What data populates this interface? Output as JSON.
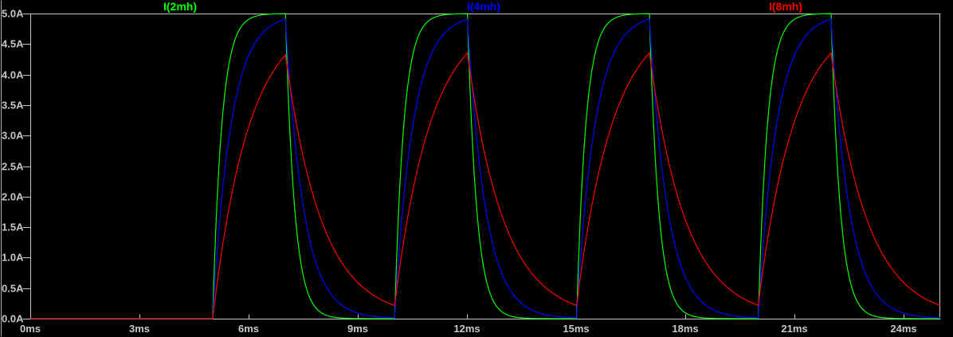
{
  "window": {
    "background": "#000000",
    "axis_color": "#c8c8c8",
    "edge_line_color": "#b0b0b0"
  },
  "chart_data": {
    "type": "line",
    "title": "",
    "grid": false,
    "legend_position": "top",
    "x_axis": {
      "unit": "ms",
      "min": 0,
      "max": 25,
      "tick_step": 3,
      "tick_labels": [
        "0ms",
        "3ms",
        "6ms",
        "9ms",
        "12ms",
        "15ms",
        "18ms",
        "21ms",
        "24ms"
      ]
    },
    "y_axis": {
      "unit": "A",
      "min": 0,
      "max": 5,
      "tick_step": 0.5,
      "tick_labels": [
        "5.0A",
        "4.5A",
        "4.0A",
        "3.5A",
        "3.0A",
        "2.5A",
        "2.0A",
        "1.5A",
        "1.0A",
        "0.5A",
        "0.0A"
      ]
    },
    "excitation": {
      "type": "pulse",
      "rise_times_ms": [
        5,
        10,
        15,
        20
      ],
      "on_width_ms": 2,
      "period_ms": 5,
      "target_on_A": 5,
      "target_off_A": 0
    },
    "series": [
      {
        "name": "I(2mh)",
        "color": "#00ff00",
        "tau_ms": 0.25,
        "knots": [
          {
            "t_ms": 0,
            "i_A": 0
          },
          {
            "t_ms": 5,
            "i_A": 0
          },
          {
            "t_ms": 7,
            "i_A": 5.0
          },
          {
            "t_ms": 10,
            "i_A": 0.0
          },
          {
            "t_ms": 12,
            "i_A": 5.0
          },
          {
            "t_ms": 15,
            "i_A": 0.0
          },
          {
            "t_ms": 17,
            "i_A": 5.0
          },
          {
            "t_ms": 20,
            "i_A": 0.0
          },
          {
            "t_ms": 22,
            "i_A": 5.0
          },
          {
            "t_ms": 25,
            "i_A": 0.0
          }
        ]
      },
      {
        "name": "I(4mh)",
        "color": "#0000ff",
        "tau_ms": 0.5,
        "knots": [
          {
            "t_ms": 0,
            "i_A": 0
          },
          {
            "t_ms": 5,
            "i_A": 0
          },
          {
            "t_ms": 7,
            "i_A": 4.91
          },
          {
            "t_ms": 10,
            "i_A": 0.012
          },
          {
            "t_ms": 12,
            "i_A": 4.91
          },
          {
            "t_ms": 15,
            "i_A": 0.012
          },
          {
            "t_ms": 17,
            "i_A": 4.91
          },
          {
            "t_ms": 20,
            "i_A": 0.012
          },
          {
            "t_ms": 22,
            "i_A": 4.91
          },
          {
            "t_ms": 25,
            "i_A": 0.012
          }
        ]
      },
      {
        "name": "I(8mh)",
        "color": "#ff0000",
        "tau_ms": 1.0,
        "knots": [
          {
            "t_ms": 0,
            "i_A": 0
          },
          {
            "t_ms": 5,
            "i_A": 0
          },
          {
            "t_ms": 7,
            "i_A": 4.32
          },
          {
            "t_ms": 10,
            "i_A": 0.215
          },
          {
            "t_ms": 12,
            "i_A": 4.35
          },
          {
            "t_ms": 15,
            "i_A": 0.217
          },
          {
            "t_ms": 17,
            "i_A": 4.35
          },
          {
            "t_ms": 20,
            "i_A": 0.217
          },
          {
            "t_ms": 22,
            "i_A": 4.35
          },
          {
            "t_ms": 25,
            "i_A": 0.217
          }
        ]
      }
    ]
  }
}
